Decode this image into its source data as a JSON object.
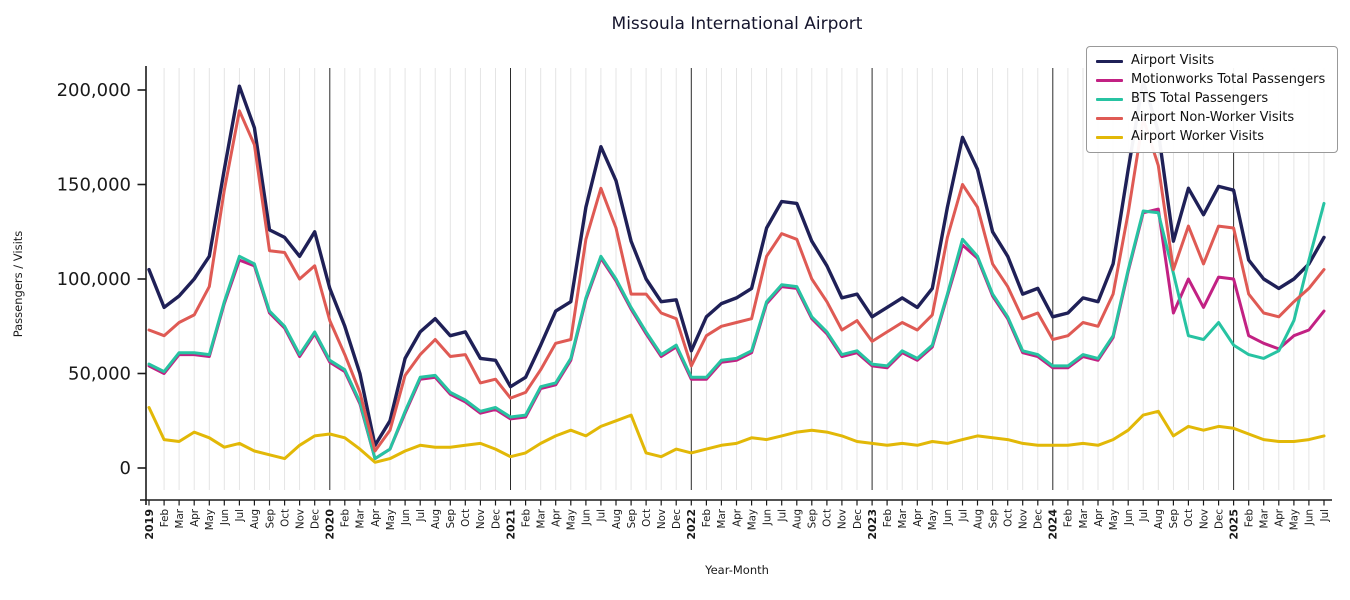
{
  "chart_data": {
    "type": "line",
    "title": "Missoula International Airport",
    "xlabel": "Year-Month",
    "ylabel": "Passengers / Visits",
    "ylim": [
      0,
      215000
    ],
    "yticks": [
      0,
      50000,
      100000,
      150000,
      200000
    ],
    "grid": "light vertical gridline per month, dark vertical line at each January",
    "legend_position": "upper right",
    "background": "#ffffff",
    "categories": [
      "2019",
      "Feb",
      "Mar",
      "Apr",
      "May",
      "Jun",
      "Jul",
      "Aug",
      "Sep",
      "Oct",
      "Nov",
      "Dec",
      "2020",
      "Feb",
      "Mar",
      "Apr",
      "May",
      "Jun",
      "Jul",
      "Aug",
      "Sep",
      "Oct",
      "Nov",
      "Dec",
      "2021",
      "Feb",
      "Mar",
      "Apr",
      "May",
      "Jun",
      "Jul",
      "Aug",
      "Sep",
      "Oct",
      "Nov",
      "Dec",
      "2022",
      "Feb",
      "Mar",
      "Apr",
      "May",
      "Jun",
      "Jul",
      "Aug",
      "Sep",
      "Oct",
      "Nov",
      "Dec",
      "2023",
      "Feb",
      "Mar",
      "Apr",
      "May",
      "Jun",
      "Jul",
      "Aug",
      "Sep",
      "Oct",
      "Nov",
      "Dec",
      "2024",
      "Feb",
      "Mar",
      "Apr",
      "May",
      "Jun",
      "Jul",
      "Aug",
      "Sep",
      "Oct",
      "Nov",
      "Dec",
      "2025",
      "Feb",
      "Mar",
      "Apr",
      "May",
      "Jun",
      "Jul"
    ],
    "year_start_indices": [
      0,
      12,
      24,
      36,
      48,
      60,
      72
    ],
    "series": [
      {
        "name": "Airport Visits",
        "color": "#1f2057",
        "values": [
          105000,
          85000,
          91000,
          100000,
          112000,
          158000,
          202000,
          180000,
          126000,
          122000,
          112000,
          125000,
          95000,
          75000,
          50000,
          12000,
          25000,
          58000,
          72000,
          79000,
          70000,
          72000,
          58000,
          57000,
          43000,
          48000,
          65000,
          83000,
          88000,
          138000,
          170000,
          152000,
          120000,
          100000,
          88000,
          89000,
          62000,
          80000,
          87000,
          90000,
          95000,
          127000,
          141000,
          140000,
          120000,
          107000,
          90000,
          92000,
          80000,
          85000,
          90000,
          85000,
          95000,
          138000,
          175000,
          158000,
          125000,
          112000,
          92000,
          95000,
          80000,
          82000,
          90000,
          88000,
          108000,
          158000,
          205000,
          178000,
          120000,
          148000,
          134000,
          149000,
          147000,
          110000,
          100000,
          95000,
          100000,
          108000,
          122000
        ]
      },
      {
        "name": "Motionworks Total Passengers",
        "color": "#c22183",
        "values": [
          54000,
          50000,
          60000,
          60000,
          59000,
          87000,
          110000,
          107000,
          82000,
          74000,
          59000,
          71000,
          56000,
          51000,
          34000,
          5000,
          10000,
          29000,
          47000,
          48000,
          39000,
          35000,
          29000,
          31000,
          26000,
          27000,
          42000,
          44000,
          57000,
          89000,
          111000,
          99000,
          84000,
          71000,
          59000,
          64000,
          47000,
          47000,
          56000,
          57000,
          61000,
          87000,
          96000,
          95000,
          79000,
          71000,
          59000,
          61000,
          54000,
          53000,
          61000,
          57000,
          64000,
          91000,
          118000,
          111000,
          91000,
          79000,
          61000,
          59000,
          53000,
          53000,
          59000,
          57000,
          69000,
          104000,
          135000,
          137000,
          82000,
          100000,
          85000,
          101000,
          100000,
          70000,
          66000,
          63000,
          70000,
          73000,
          83000
        ]
      },
      {
        "name": "BTS Total Passengers",
        "color": "#27c3a2",
        "values": [
          55000,
          51000,
          61000,
          61000,
          60000,
          88000,
          112000,
          108000,
          83000,
          75000,
          60000,
          72000,
          57000,
          52000,
          35000,
          5000,
          10000,
          30000,
          48000,
          49000,
          40000,
          36000,
          30000,
          32000,
          27000,
          28000,
          43000,
          45000,
          58000,
          90000,
          112000,
          100000,
          85000,
          72000,
          60000,
          65000,
          48000,
          48000,
          57000,
          58000,
          62000,
          88000,
          97000,
          96000,
          80000,
          72000,
          60000,
          62000,
          55000,
          54000,
          62000,
          58000,
          65000,
          92000,
          121000,
          112000,
          92000,
          80000,
          62000,
          60000,
          54000,
          54000,
          60000,
          58000,
          70000,
          105000,
          136000,
          135000,
          103000,
          70000,
          68000,
          77000,
          65000,
          60000,
          58000,
          62000,
          78000,
          110000,
          140000
        ]
      },
      {
        "name": "Airport Non-Worker Visits",
        "color": "#df5a54",
        "values": [
          73000,
          70000,
          77000,
          81000,
          96000,
          147000,
          189000,
          171000,
          115000,
          114000,
          100000,
          107000,
          78000,
          60000,
          40000,
          9000,
          20000,
          49000,
          60000,
          68000,
          59000,
          60000,
          45000,
          47000,
          37000,
          40000,
          52000,
          66000,
          68000,
          121000,
          148000,
          127000,
          92000,
          92000,
          82000,
          79000,
          54000,
          70000,
          75000,
          77000,
          79000,
          112000,
          124000,
          121000,
          100000,
          88000,
          73000,
          78000,
          67000,
          72000,
          77000,
          73000,
          81000,
          122000,
          150000,
          138000,
          108000,
          96000,
          79000,
          82000,
          68000,
          70000,
          77000,
          75000,
          92000,
          135000,
          185000,
          160000,
          105000,
          128000,
          108000,
          128000,
          127000,
          92000,
          82000,
          80000,
          88000,
          95000,
          105000
        ]
      },
      {
        "name": "Airport Worker Visits",
        "color": "#e2b807",
        "values": [
          32000,
          15000,
          14000,
          19000,
          16000,
          11000,
          13000,
          9000,
          7000,
          5000,
          12000,
          17000,
          18000,
          16000,
          10000,
          3000,
          5000,
          9000,
          12000,
          11000,
          11000,
          12000,
          13000,
          10000,
          6000,
          8000,
          13000,
          17000,
          20000,
          17000,
          22000,
          25000,
          28000,
          8000,
          6000,
          10000,
          8000,
          10000,
          12000,
          13000,
          16000,
          15000,
          17000,
          19000,
          20000,
          19000,
          17000,
          14000,
          13000,
          12000,
          13000,
          12000,
          14000,
          13000,
          15000,
          17000,
          16000,
          15000,
          13000,
          12000,
          12000,
          12000,
          13000,
          12000,
          15000,
          20000,
          28000,
          30000,
          17000,
          22000,
          20000,
          22000,
          21000,
          18000,
          15000,
          14000,
          14000,
          15000,
          17000
        ]
      }
    ]
  }
}
